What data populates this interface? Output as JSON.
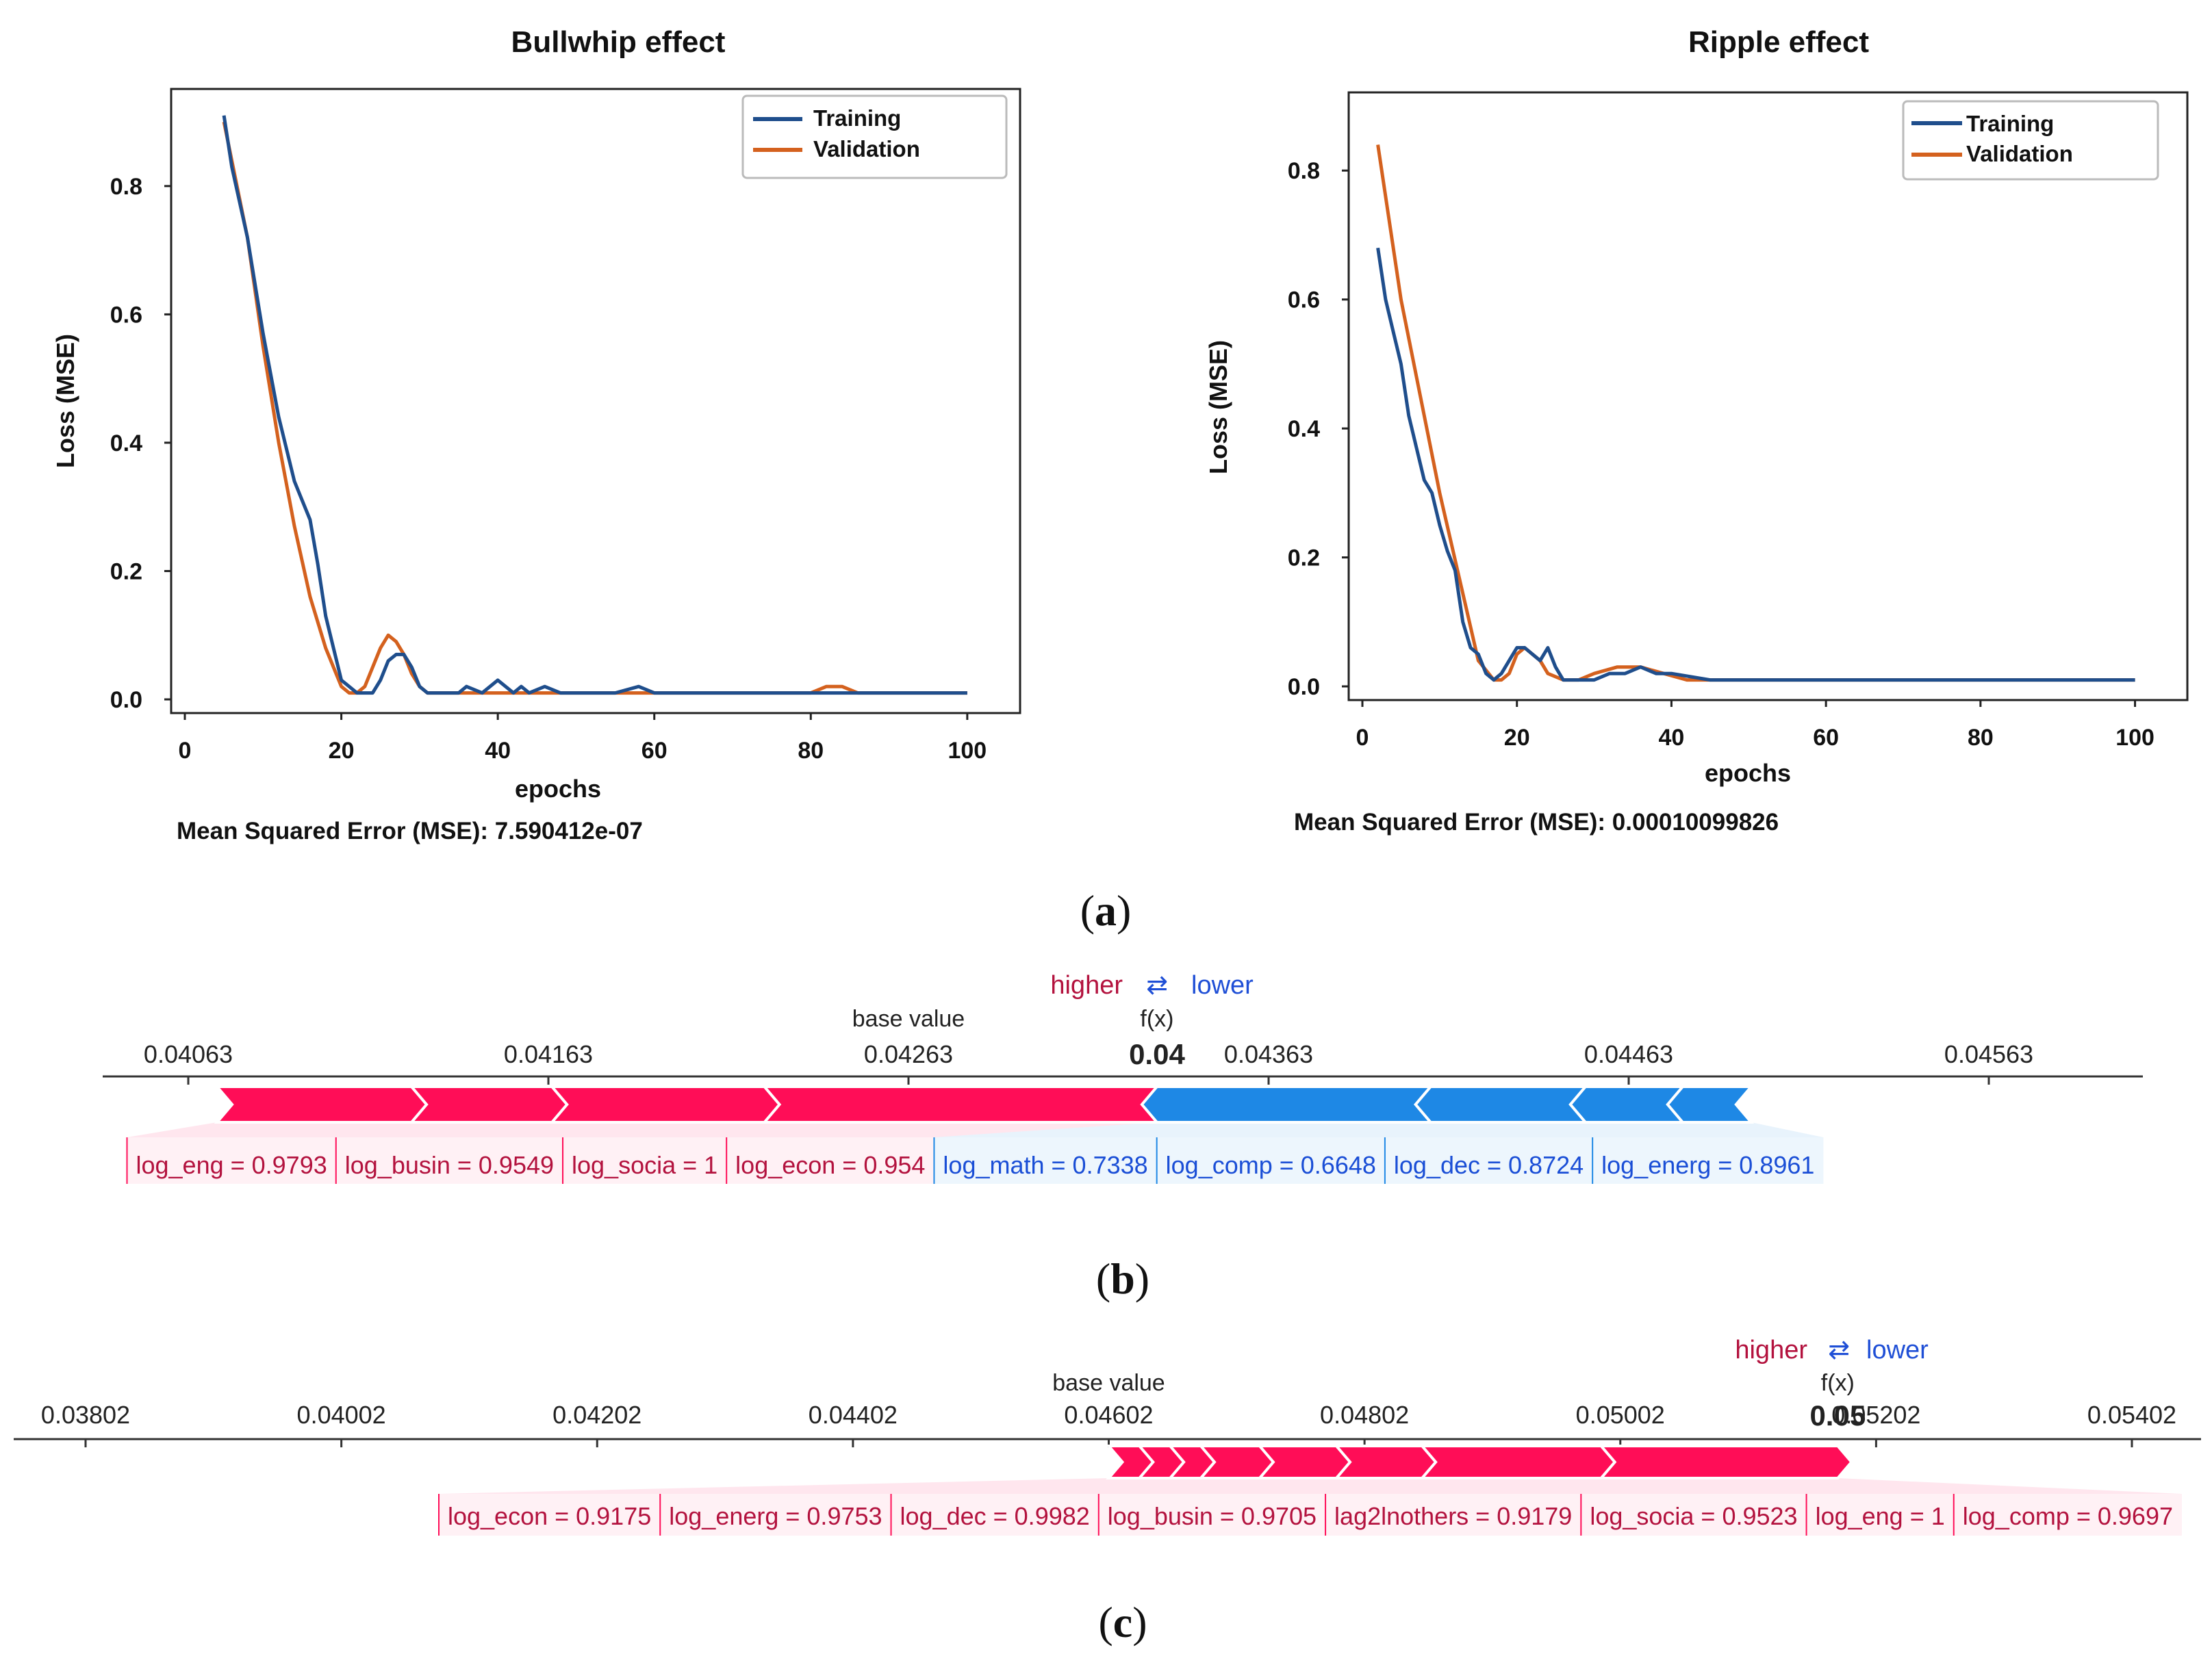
{
  "chart_data": [
    {
      "type": "line",
      "title": "Bullwhip effect",
      "xlabel": "epochs",
      "ylabel": "Loss (MSE)",
      "xlim": [
        0,
        105
      ],
      "ylim": [
        0,
        0.93
      ],
      "xticks": [
        "0",
        "20",
        "40",
        "60",
        "80",
        "100"
      ],
      "yticks": [
        "0.0",
        "0.2",
        "0.4",
        "0.6",
        "0.8"
      ],
      "legend": [
        "Training",
        "Validation"
      ],
      "legend_position": "top-right",
      "series": [
        {
          "name": "Training",
          "color": "#1f4e8c",
          "x": [
            5,
            6,
            8,
            10,
            12,
            14,
            15,
            16,
            17,
            18,
            19,
            20,
            21,
            22,
            23,
            24,
            25,
            26,
            27,
            28,
            29,
            30,
            31,
            32,
            33,
            34,
            35,
            36,
            38,
            40,
            42,
            43,
            44,
            46,
            48,
            50,
            55,
            58,
            60,
            65,
            70,
            75,
            80,
            85,
            90,
            95,
            100
          ],
          "y": [
            0.91,
            0.83,
            0.72,
            0.57,
            0.44,
            0.34,
            0.31,
            0.28,
            0.21,
            0.13,
            0.08,
            0.03,
            0.02,
            0.01,
            0.01,
            0.01,
            0.03,
            0.06,
            0.07,
            0.07,
            0.05,
            0.02,
            0.01,
            0.01,
            0.01,
            0.01,
            0.01,
            0.02,
            0.01,
            0.03,
            0.01,
            0.02,
            0.01,
            0.02,
            0.01,
            0.01,
            0.01,
            0.02,
            0.01,
            0.01,
            0.01,
            0.01,
            0.01,
            0.01,
            0.01,
            0.01,
            0.01
          ]
        },
        {
          "name": "Validation",
          "color": "#d4611e",
          "x": [
            5,
            8,
            10,
            12,
            14,
            16,
            18,
            20,
            21,
            22,
            23,
            24,
            25,
            26,
            27,
            28,
            29,
            30,
            31,
            32,
            33,
            34,
            35,
            40,
            50,
            60,
            70,
            80,
            82,
            84,
            86,
            90,
            100
          ],
          "y": [
            0.9,
            0.72,
            0.55,
            0.4,
            0.27,
            0.16,
            0.08,
            0.02,
            0.01,
            0.01,
            0.02,
            0.05,
            0.08,
            0.1,
            0.09,
            0.07,
            0.04,
            0.02,
            0.01,
            0.01,
            0.01,
            0.01,
            0.01,
            0.01,
            0.01,
            0.01,
            0.01,
            0.01,
            0.02,
            0.02,
            0.01,
            0.01,
            0.01
          ]
        }
      ],
      "caption": "Mean Squared Error (MSE): 7.590412e-07"
    },
    {
      "type": "line",
      "title": "Ripple effect",
      "xlabel": "epochs",
      "ylabel": "Loss (MSE)",
      "xlim": [
        0,
        105
      ],
      "ylim": [
        0,
        0.9
      ],
      "xticks": [
        "0",
        "20",
        "40",
        "60",
        "80",
        "100"
      ],
      "yticks": [
        "0.0",
        "0.2",
        "0.4",
        "0.6",
        "0.8"
      ],
      "legend": [
        "Training",
        "Validation"
      ],
      "legend_position": "top-right",
      "series": [
        {
          "name": "Training",
          "color": "#1f4e8c",
          "x": [
            2,
            3,
            4,
            5,
            6,
            7,
            8,
            9,
            10,
            11,
            12,
            13,
            14,
            15,
            16,
            17,
            18,
            19,
            20,
            21,
            22,
            23,
            24,
            25,
            26,
            27,
            28,
            30,
            32,
            34,
            36,
            38,
            40,
            45,
            50,
            55,
            60,
            65,
            70,
            75,
            80,
            85,
            90,
            95,
            100
          ],
          "y": [
            0.68,
            0.6,
            0.55,
            0.5,
            0.42,
            0.37,
            0.32,
            0.3,
            0.25,
            0.21,
            0.18,
            0.1,
            0.06,
            0.05,
            0.02,
            0.01,
            0.02,
            0.04,
            0.06,
            0.06,
            0.05,
            0.04,
            0.06,
            0.03,
            0.01,
            0.01,
            0.01,
            0.01,
            0.02,
            0.02,
            0.03,
            0.02,
            0.02,
            0.01,
            0.01,
            0.01,
            0.01,
            0.01,
            0.01,
            0.01,
            0.01,
            0.01,
            0.01,
            0.01,
            0.01
          ]
        },
        {
          "name": "Validation",
          "color": "#d4611e",
          "x": [
            2,
            5,
            10,
            15,
            17,
            18,
            19,
            20,
            21,
            22,
            23,
            24,
            26,
            28,
            30,
            33,
            36,
            39,
            42,
            45,
            50,
            60,
            70,
            80,
            90,
            100
          ],
          "y": [
            0.84,
            0.6,
            0.3,
            0.04,
            0.01,
            0.01,
            0.02,
            0.05,
            0.06,
            0.05,
            0.04,
            0.02,
            0.01,
            0.01,
            0.02,
            0.03,
            0.03,
            0.02,
            0.01,
            0.01,
            0.01,
            0.01,
            0.01,
            0.01,
            0.01,
            0.01
          ]
        }
      ],
      "caption": "Mean Squared Error (MSE): 0.00010099826"
    },
    {
      "type": "force",
      "label": "(b)",
      "higher_label": "higher",
      "lower_label": "lower",
      "swap_glyph": "⇄",
      "base_value_label": "base value",
      "fx_label": "f(x)",
      "fx_value_text": "0.04",
      "fx_value": 0.04332,
      "base_value": 0.04263,
      "ticks": [
        "0.04063",
        "0.04163",
        "0.04263",
        "0.04363",
        "0.04463",
        "0.04563"
      ],
      "axis_range": [
        0.04039,
        0.04607
      ],
      "positive": [
        {
          "label": "log_eng = 0.9793",
          "from": 0.04071,
          "to": 0.04125
        },
        {
          "label": "log_busin = 0.9549",
          "from": 0.04125,
          "to": 0.04164
        },
        {
          "label": "log_socia = 1",
          "from": 0.04164,
          "to": 0.04223
        },
        {
          "label": "log_econ = 0.954",
          "from": 0.04223,
          "to": 0.04332
        }
      ],
      "negative": [
        {
          "label": "log_math = 0.7338",
          "from": 0.04332,
          "to": 0.04408
        },
        {
          "label": "log_comp = 0.6648",
          "from": 0.04408,
          "to": 0.04451
        },
        {
          "label": "log_dec = 0.8724",
          "from": 0.04451,
          "to": 0.04478
        },
        {
          "label": "log_energ = 0.8961",
          "from": 0.04478,
          "to": 0.04497
        }
      ],
      "positive_color": "#ff0d57",
      "negative_color": "#1e88e5"
    },
    {
      "type": "force",
      "label": "(c)",
      "higher_label": "higher",
      "lower_label": "lower",
      "swap_glyph": "⇄",
      "base_value_label": "base value",
      "fx_label": "f(x)",
      "fx_value_text": "0.05",
      "fx_value": 0.05172,
      "base_value": 0.04602,
      "ticks": [
        "0.03802",
        "0.04002",
        "0.04202",
        "0.04402",
        "0.04602",
        "0.04802",
        "0.05002",
        "0.05202",
        "0.05402"
      ],
      "axis_range": [
        0.03758,
        0.05466
      ],
      "positive": [
        {
          "label": "log_econ = 0.9175",
          "from": 0.04602,
          "to": 0.04626
        },
        {
          "label": "log_energ = 0.9753",
          "from": 0.04626,
          "to": 0.0465
        },
        {
          "label": "log_dec = 0.9982",
          "from": 0.0465,
          "to": 0.04674
        },
        {
          "label": "log_busin = 0.9705",
          "from": 0.04674,
          "to": 0.0472
        },
        {
          "label": "lag2lnothers = 0.9179",
          "from": 0.0472,
          "to": 0.0478
        },
        {
          "label": "log_socia = 0.9523",
          "from": 0.0478,
          "to": 0.04847
        },
        {
          "label": "log_eng = 1",
          "from": 0.04847,
          "to": 0.04987
        },
        {
          "label": "log_comp = 0.9697",
          "from": 0.04987,
          "to": 0.05172
        }
      ],
      "negative": [],
      "positive_color": "#ff0d57",
      "negative_color": "#1e88e5"
    }
  ]
}
